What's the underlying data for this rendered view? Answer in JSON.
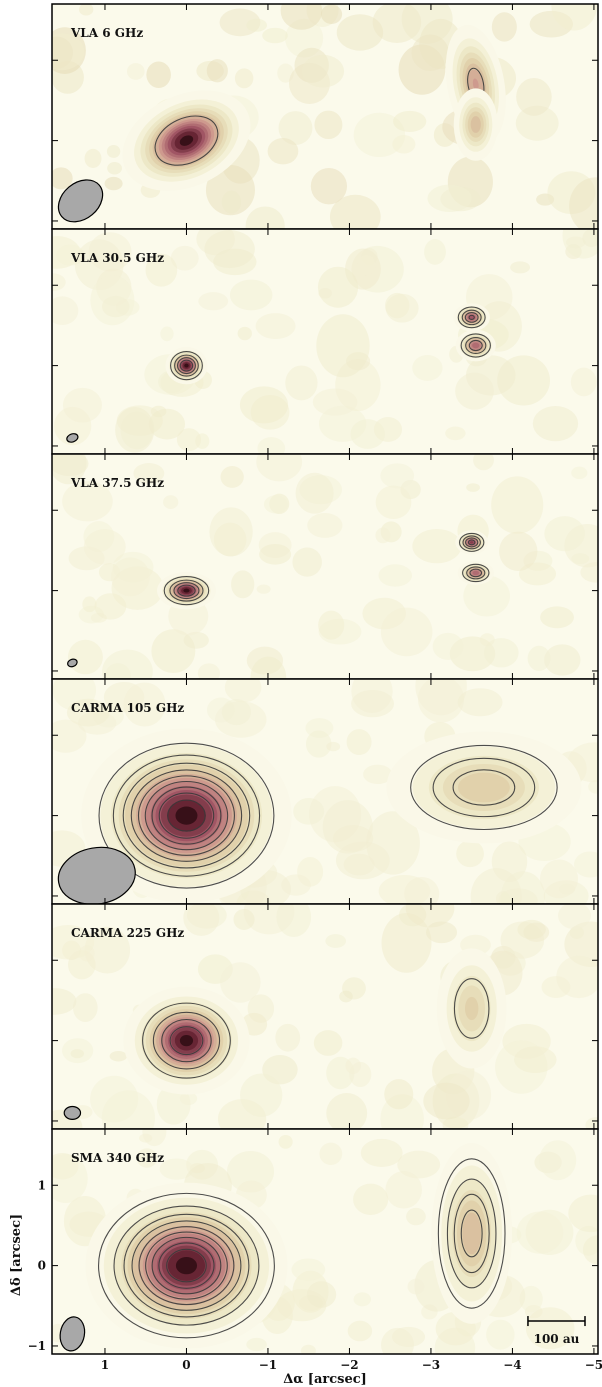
{
  "chart_data": {
    "type": "heatmap",
    "layout": "vertical-stack",
    "xlabel": "Δα  [arcsec]",
    "ylabel": "Δδ  [arcsec]",
    "xlim": [
      1.65,
      -5.05
    ],
    "ylim": [
      -1.1,
      1.7
    ],
    "xticks": [
      1,
      0,
      -1,
      -2,
      -3,
      -4,
      -5
    ],
    "xtick_labels": [
      "1",
      "0",
      "−1",
      "−2",
      "−3",
      "−4",
      "−5"
    ],
    "yticks": [
      1,
      0,
      -1
    ],
    "ytick_labels": [
      "1",
      "0",
      "−1"
    ],
    "colormap": "cream-to-maroon",
    "contour_color": "#3a3a3a",
    "beam_color": "#a8a8a8",
    "scalebar": {
      "label": "100 au",
      "length_arcsec": 0.7
    },
    "panels": [
      {
        "label": "VLA 6 GHz",
        "noise": 0.22,
        "sources": [
          {
            "x": 0.0,
            "y": 0.0,
            "peak": 1.0,
            "sx": 0.32,
            "sy": 0.22,
            "angle": 25
          },
          {
            "x": -3.55,
            "y": 0.7,
            "peak": 0.55,
            "sx": 0.15,
            "sy": 0.32,
            "angle": 10
          },
          {
            "x": -3.55,
            "y": 0.2,
            "peak": 0.45,
            "sx": 0.12,
            "sy": 0.2,
            "angle": 0
          }
        ],
        "contours": [
          0.45
        ],
        "beam": {
          "x": 1.3,
          "y": -0.75,
          "major": 0.6,
          "minor": 0.45,
          "angle": 40
        }
      },
      {
        "label": "VLA 30.5 GHz",
        "noise": 0.08,
        "sources": [
          {
            "x": 0.0,
            "y": 0.0,
            "peak": 1.0,
            "sx": 0.1,
            "sy": 0.09,
            "angle": 0
          },
          {
            "x": -3.5,
            "y": 0.6,
            "peak": 0.8,
            "sx": 0.09,
            "sy": 0.07,
            "angle": 0
          },
          {
            "x": -3.55,
            "y": 0.25,
            "peak": 0.75,
            "sx": 0.1,
            "sy": 0.08,
            "angle": 0
          }
        ],
        "contours": [
          0.15,
          0.35,
          0.55,
          0.75
        ],
        "beam": {
          "x": 1.4,
          "y": -0.9,
          "major": 0.14,
          "minor": 0.1,
          "angle": 20
        }
      },
      {
        "label": "VLA 37.5 GHz",
        "noise": 0.08,
        "sources": [
          {
            "x": 0.0,
            "y": 0.0,
            "peak": 1.0,
            "sx": 0.14,
            "sy": 0.09,
            "angle": 0
          },
          {
            "x": -3.5,
            "y": 0.6,
            "peak": 0.85,
            "sx": 0.08,
            "sy": 0.06,
            "angle": 0
          },
          {
            "x": -3.55,
            "y": 0.22,
            "peak": 0.75,
            "sx": 0.09,
            "sy": 0.06,
            "angle": 0
          }
        ],
        "contours": [
          0.15,
          0.35,
          0.55,
          0.75
        ],
        "beam": {
          "x": 1.4,
          "y": -0.9,
          "major": 0.12,
          "minor": 0.09,
          "angle": 20
        }
      },
      {
        "label": "CARMA 105 GHz",
        "noise": 0.05,
        "sources": [
          {
            "x": 0.0,
            "y": 0.0,
            "peak": 1.0,
            "sx": 0.5,
            "sy": 0.42,
            "angle": 0
          },
          {
            "x": -3.65,
            "y": 0.35,
            "peak": 0.38,
            "sx": 0.55,
            "sy": 0.32,
            "angle": 0
          }
        ],
        "contours": [
          0.1,
          0.2,
          0.3,
          0.4,
          0.5,
          0.6,
          0.7,
          0.8,
          0.9
        ],
        "beam": {
          "x": 1.1,
          "y": -0.75,
          "major": 0.95,
          "minor": 0.7,
          "angle": 10
        }
      },
      {
        "label": "CARMA 225 GHz",
        "noise": 0.1,
        "sources": [
          {
            "x": 0.0,
            "y": 0.0,
            "peak": 1.0,
            "sx": 0.3,
            "sy": 0.26,
            "angle": 0
          },
          {
            "x": -3.5,
            "y": 0.4,
            "peak": 0.35,
            "sx": 0.2,
            "sy": 0.35,
            "angle": 0
          }
        ],
        "contours": [
          0.2,
          0.4,
          0.6,
          0.8
        ],
        "beam": {
          "x": 1.4,
          "y": -0.9,
          "major": 0.2,
          "minor": 0.16,
          "angle": 0
        }
      },
      {
        "label": "SMA 340 GHz",
        "noise": 0.06,
        "sources": [
          {
            "x": 0.0,
            "y": 0.0,
            "peak": 1.0,
            "sx": 0.48,
            "sy": 0.4,
            "angle": 0
          },
          {
            "x": -3.5,
            "y": 0.4,
            "peak": 0.45,
            "sx": 0.22,
            "sy": 0.5,
            "angle": 0
          }
        ],
        "contours": [
          0.08,
          0.18,
          0.28,
          0.38,
          0.48,
          0.58,
          0.68,
          0.78,
          0.88
        ],
        "beam": {
          "x": 1.4,
          "y": -0.85,
          "major": 0.42,
          "minor": 0.3,
          "angle": 80
        },
        "show_scalebar": true
      }
    ]
  }
}
